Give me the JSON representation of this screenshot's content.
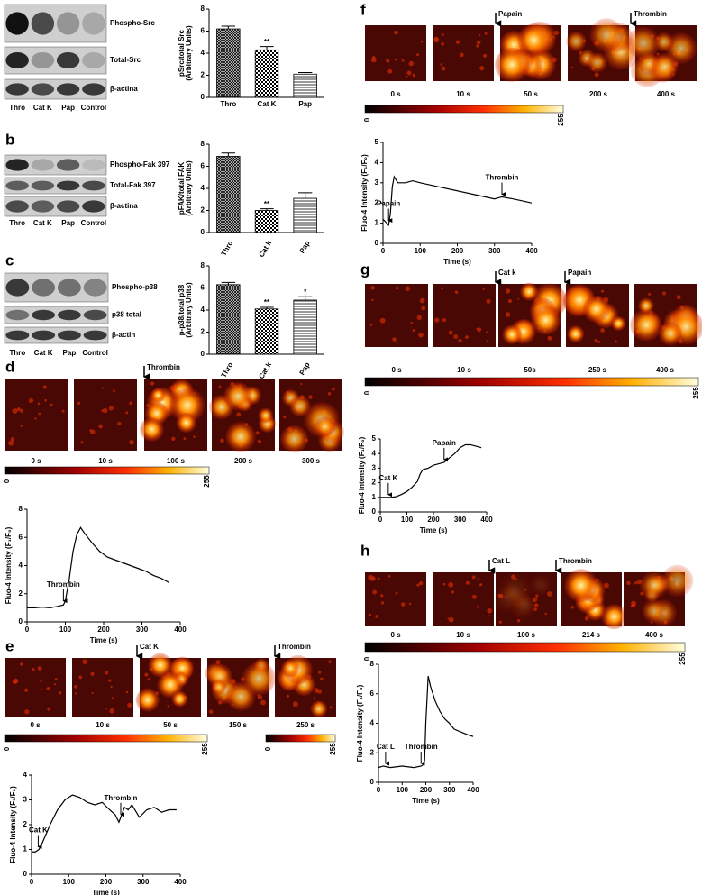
{
  "figure": {
    "panels": [
      {
        "letter": "a",
        "blot_labels": [
          "Phospho-Src",
          "Total-Src",
          "β-actina"
        ],
        "lanes": [
          "Thro",
          "Cat K",
          "Pap",
          "Control"
        ]
      },
      {
        "letter": "b",
        "blot_labels": [
          "Phospho-Fak 397",
          "Total-Fak 397",
          "β-actina"
        ],
        "lanes": [
          "Thro",
          "Cat K",
          "Pap",
          "Control"
        ]
      },
      {
        "letter": "c",
        "blot_labels": [
          "Phospho-p38",
          "p38 total",
          "β-actin"
        ],
        "lanes": [
          "Thro",
          "Cat K",
          "Pap",
          "Control"
        ]
      },
      {
        "letter": "d",
        "frame_times": [
          "0 s",
          "10 s",
          "100 s",
          "200 s",
          "300 s"
        ],
        "treatments": [
          "Thrombin"
        ],
        "colorbars": [
          [
            0,
            255
          ]
        ]
      },
      {
        "letter": "e",
        "frame_times": [
          "0 s",
          "10 s",
          "50 s",
          "150 s",
          "250 s"
        ],
        "treatments": [
          "Cat K",
          "Thrombin"
        ],
        "colorbars": [
          [
            0,
            255
          ],
          [
            0,
            255
          ]
        ]
      },
      {
        "letter": "f",
        "frame_times": [
          "0 s",
          "10 s",
          "50 s",
          "200 s",
          "400 s"
        ],
        "treatments": [
          "Papain",
          "Thrombin"
        ],
        "colorbars": [
          [
            0,
            255
          ]
        ]
      },
      {
        "letter": "g",
        "frame_times": [
          "0 s",
          "10 s",
          "50s",
          "250 s",
          "400 s"
        ],
        "treatments": [
          "Cat k",
          "Papain"
        ],
        "colorbars": [
          [
            0,
            255
          ]
        ]
      },
      {
        "letter": "h",
        "frame_times": [
          "0 s",
          "10 s",
          "100 s",
          "214 s",
          "400 s"
        ],
        "treatments": [
          "Cat L",
          "Thrombin"
        ],
        "colorbars": [
          [
            0,
            255
          ]
        ]
      }
    ]
  },
  "chart_data": [
    {
      "type": "bar",
      "ylabel": [
        "pSrc/total Src",
        "(Arbitrary Units)"
      ],
      "categories": [
        "Thro",
        "Cat K",
        "Pap"
      ],
      "values": [
        6.2,
        4.3,
        2.1
      ],
      "errors": [
        0.25,
        0.3,
        0.15
      ],
      "significance": [
        null,
        "**",
        null
      ],
      "color": "#000000",
      "ylim": [
        0,
        8
      ],
      "yticks": [
        0,
        2,
        4,
        6,
        8
      ]
    },
    {
      "type": "bar",
      "ylabel": [
        "pFAK/total FAK",
        "(Arbitrary Units)"
      ],
      "categories": [
        "Thro",
        "Cat k",
        "Pap"
      ],
      "values": [
        6.9,
        2.0,
        3.1
      ],
      "errors": [
        0.3,
        0.15,
        0.5
      ],
      "significance": [
        null,
        "**",
        null
      ],
      "color": "#000000",
      "ylim": [
        0,
        8
      ],
      "yticks": [
        0,
        2,
        4,
        6,
        8
      ]
    },
    {
      "type": "bar",
      "ylabel": [
        "p-p38/total p38",
        "(Arbitrary Units)"
      ],
      "categories": [
        "Thro",
        "Cat k",
        "Pap"
      ],
      "values": [
        6.3,
        4.1,
        4.9
      ],
      "errors": [
        0.2,
        0.15,
        0.3
      ],
      "significance": [
        null,
        "**",
        "*"
      ],
      "color": "#000000",
      "ylim": [
        0,
        8
      ],
      "yticks": [
        0,
        2,
        4,
        6,
        8
      ]
    },
    {
      "type": "line",
      "xlabel": "Time (s)",
      "ylabel": "Fluo-4 Intensity (F₁/F₀)",
      "color": "#000000",
      "x": [
        0,
        20,
        40,
        60,
        80,
        95,
        100,
        110,
        120,
        130,
        140,
        150,
        170,
        190,
        210,
        230,
        250,
        270,
        290,
        310,
        330,
        350,
        370
      ],
      "values": [
        1,
        1,
        1.05,
        1,
        1.1,
        1.2,
        1.5,
        3,
        5,
        6.2,
        6.7,
        6.3,
        5.6,
        5,
        4.6,
        4.4,
        4.2,
        4,
        3.8,
        3.6,
        3.3,
        3.1,
        2.8
      ],
      "annotations": [
        {
          "text": "Thrombin",
          "x": 95,
          "y": 1.3
        }
      ],
      "xlim": [
        0,
        400
      ],
      "xticks": [
        0,
        100,
        200,
        300,
        400
      ],
      "ylim": [
        0,
        8
      ],
      "yticks": [
        0,
        2,
        4,
        6,
        8
      ]
    },
    {
      "type": "line",
      "xlabel": "Time (s)",
      "ylabel": "Fluo-4 Intensity (F₁/F₀)",
      "color": "#000000",
      "x": [
        0,
        10,
        20,
        30,
        50,
        70,
        90,
        110,
        130,
        150,
        170,
        190,
        210,
        225,
        235,
        240,
        250,
        260,
        270,
        290,
        310,
        330,
        350,
        370,
        390
      ],
      "values": [
        0.9,
        0.9,
        1.0,
        1.3,
        2.0,
        2.6,
        3.0,
        3.2,
        3.1,
        2.9,
        2.8,
        2.9,
        2.6,
        2.4,
        2.1,
        2.3,
        2.7,
        2.6,
        2.8,
        2.3,
        2.6,
        2.7,
        2.5,
        2.6,
        2.6
      ],
      "annotations": [
        {
          "text": "Cat K",
          "x": 18,
          "y": 1.0
        },
        {
          "text": "Thrombin",
          "x": 240,
          "y": 2.3
        }
      ],
      "xlim": [
        0,
        400
      ],
      "xticks": [
        0,
        100,
        200,
        300,
        400
      ],
      "ylim": [
        0,
        4
      ],
      "yticks": [
        0,
        1,
        2,
        3,
        4
      ]
    },
    {
      "type": "line",
      "xlabel": "Time (s)",
      "ylabel": "Fluo-4 Intensity (F₁/F₀)",
      "color": "#000000",
      "x": [
        0,
        10,
        15,
        20,
        25,
        30,
        40,
        60,
        80,
        100,
        150,
        200,
        250,
        300,
        320,
        350,
        400
      ],
      "values": [
        1.2,
        1.0,
        0.9,
        1.5,
        2.8,
        3.3,
        3.0,
        3.0,
        3.1,
        3.0,
        2.8,
        2.6,
        2.4,
        2.2,
        2.3,
        2.2,
        2.0
      ],
      "annotations": [
        {
          "text": "Papain",
          "x": 15,
          "y": 1.0
        },
        {
          "text": "Thrombin",
          "x": 320,
          "y": 2.3
        }
      ],
      "xlim": [
        0,
        400
      ],
      "xticks": [
        0,
        100,
        200,
        300,
        400
      ],
      "ylim": [
        0,
        5
      ],
      "yticks": [
        0,
        1,
        2,
        3,
        4,
        5
      ]
    },
    {
      "type": "line",
      "xlabel": "Time (s)",
      "ylabel": "Fluo-4 intensity (F₁/F₀)",
      "color": "#000000",
      "x": [
        0,
        20,
        40,
        60,
        80,
        100,
        120,
        140,
        150,
        160,
        180,
        200,
        220,
        240,
        260,
        280,
        300,
        320,
        340,
        360,
        380
      ],
      "values": [
        1,
        1,
        1,
        1.05,
        1.2,
        1.4,
        1.7,
        2.1,
        2.6,
        2.9,
        3.0,
        3.2,
        3.3,
        3.4,
        3.7,
        4.0,
        4.4,
        4.6,
        4.6,
        4.5,
        4.4
      ],
      "annotations": [
        {
          "text": "Cat K",
          "x": 30,
          "y": 1.0
        },
        {
          "text": "Papain",
          "x": 240,
          "y": 3.4
        }
      ],
      "xlim": [
        0,
        400
      ],
      "xticks": [
        0,
        100,
        200,
        300,
        400
      ],
      "ylim": [
        0,
        5
      ],
      "yticks": [
        0,
        1,
        2,
        3,
        4,
        5
      ]
    },
    {
      "type": "line",
      "xlabel": "Time (s)",
      "ylabel": "Fluo-4 Intensity (F₁/F₀)",
      "color": "#000000",
      "x": [
        0,
        20,
        50,
        100,
        150,
        180,
        190,
        195,
        200,
        210,
        220,
        240,
        260,
        280,
        300,
        320,
        350,
        380,
        400
      ],
      "values": [
        1,
        1.1,
        1.0,
        1.1,
        1.0,
        1.1,
        1.2,
        1.5,
        4,
        7.2,
        6.5,
        5.5,
        4.8,
        4.3,
        4,
        3.6,
        3.4,
        3.2,
        3.1
      ],
      "annotations": [
        {
          "text": "Cat L",
          "x": 30,
          "y": 1.1
        },
        {
          "text": "Thrombin",
          "x": 180,
          "y": 1.1
        }
      ],
      "xlim": [
        0,
        400
      ],
      "xticks": [
        0,
        100,
        200,
        300,
        400
      ],
      "ylim": [
        0,
        8
      ],
      "yticks": [
        0,
        2,
        4,
        6,
        8
      ]
    }
  ]
}
